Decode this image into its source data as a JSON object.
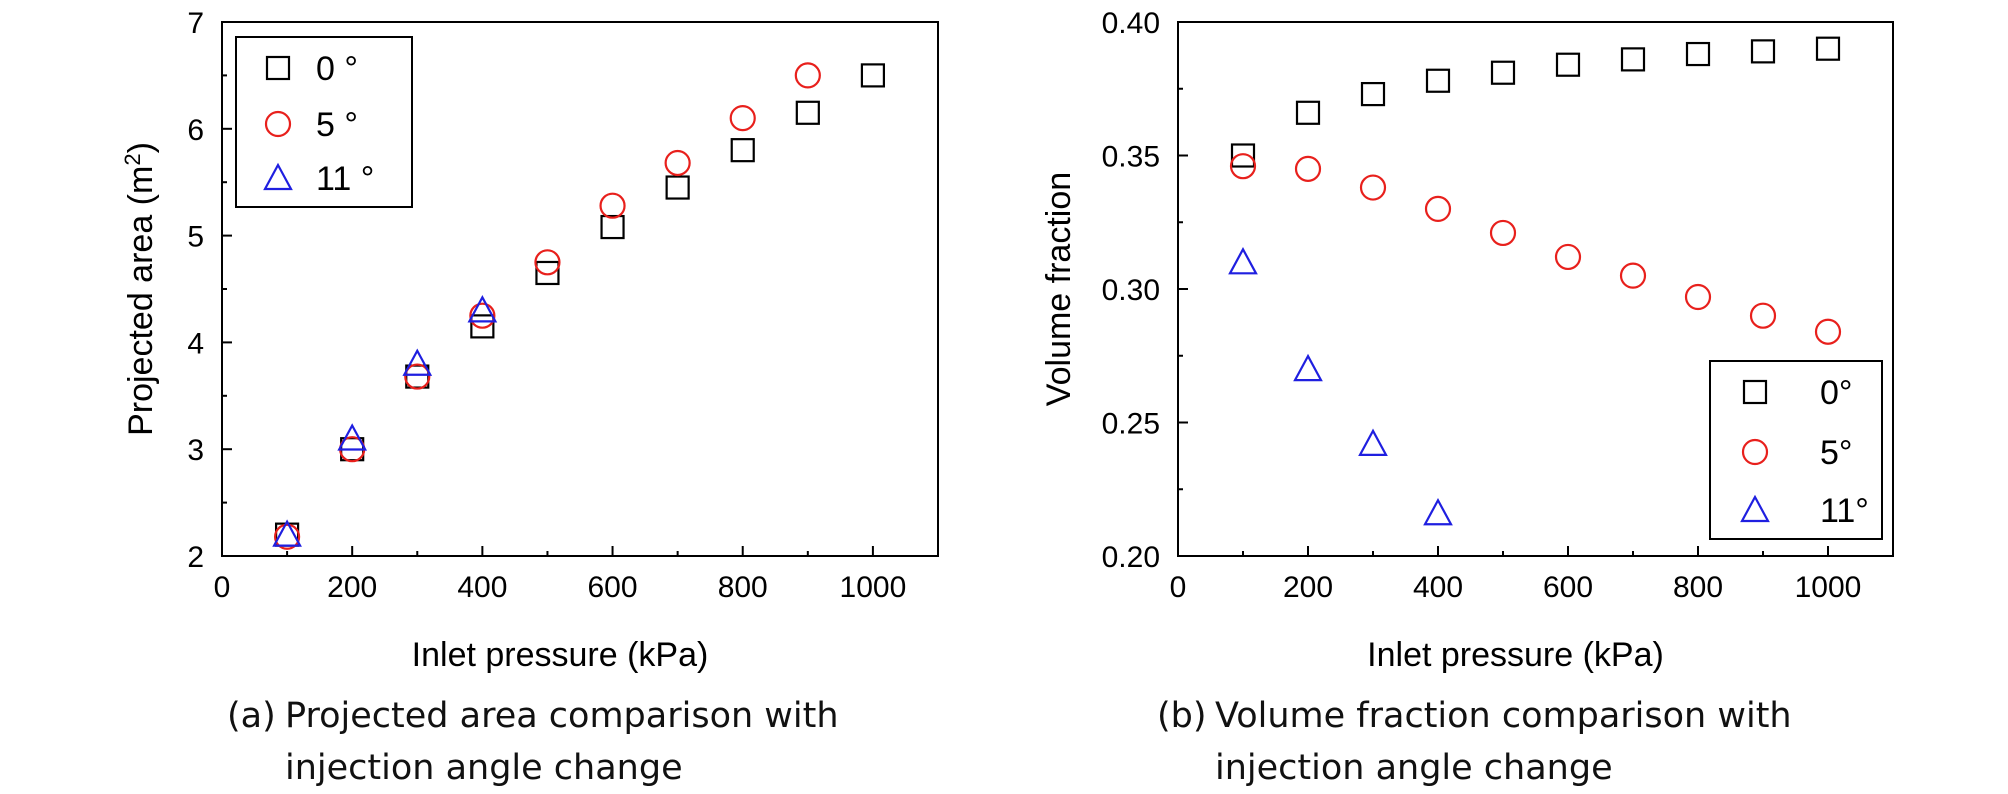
{
  "chart_data": [
    {
      "type": "scatter",
      "panel": "a",
      "xlabel": "Inlet pressure (kPa)",
      "ylabel": "Projected area (m",
      "ylabel_sup": "2",
      "ylabel_end": ")",
      "xlim": [
        0,
        1100
      ],
      "ylim": [
        2,
        7
      ],
      "xticks": [
        "0",
        "200",
        "400",
        "600",
        "800",
        "1000"
      ],
      "yticks": [
        "2",
        "3",
        "4",
        "5",
        "6",
        "7"
      ],
      "legend_position": "top-left",
      "grid": false,
      "series": [
        {
          "name": "0 °",
          "marker": "square",
          "color": "#000000",
          "x": [
            100,
            200,
            300,
            400,
            500,
            600,
            700,
            800,
            900,
            1000
          ],
          "y": [
            2.2,
            3.0,
            3.68,
            4.15,
            4.65,
            5.08,
            5.45,
            5.8,
            6.15,
            6.5
          ]
        },
        {
          "name": "5 °",
          "marker": "circle",
          "color": "#e8201c",
          "x": [
            100,
            200,
            300,
            400,
            500,
            600,
            700,
            800,
            900
          ],
          "y": [
            2.18,
            3.0,
            3.68,
            4.25,
            4.75,
            5.28,
            5.68,
            6.1,
            6.5
          ]
        },
        {
          "name": "11 °",
          "marker": "triangle",
          "color": "#1f1fe0",
          "x": [
            100,
            200,
            300,
            400
          ],
          "y": [
            2.2,
            3.1,
            3.8,
            4.3
          ]
        }
      ],
      "caption_label": "(a)",
      "caption_line1": "Projected area comparison with",
      "caption_line2": "injection angle change"
    },
    {
      "type": "scatter",
      "panel": "b",
      "xlabel": "Inlet pressure (kPa)",
      "ylabel": "Volume fraction",
      "xlim": [
        0,
        1100
      ],
      "ylim": [
        0.2,
        0.4
      ],
      "xticks": [
        "0",
        "200",
        "400",
        "600",
        "800",
        "1000"
      ],
      "yticks": [
        "0.20",
        "0.25",
        "0.30",
        "0.35",
        "0.40"
      ],
      "legend_position": "bottom-right",
      "grid": false,
      "series": [
        {
          "name": "0°",
          "marker": "square",
          "color": "#000000",
          "x": [
            100,
            200,
            300,
            400,
            500,
            600,
            700,
            800,
            900,
            1000
          ],
          "y": [
            0.35,
            0.366,
            0.373,
            0.378,
            0.381,
            0.384,
            0.386,
            0.388,
            0.389,
            0.39
          ]
        },
        {
          "name": "5°",
          "marker": "circle",
          "color": "#e8201c",
          "x": [
            100,
            200,
            300,
            400,
            500,
            600,
            700,
            800,
            900,
            1000
          ],
          "y": [
            0.346,
            0.345,
            0.338,
            0.33,
            0.321,
            0.312,
            0.305,
            0.297,
            0.29,
            0.284
          ]
        },
        {
          "name": "11°",
          "marker": "triangle",
          "color": "#1f1fe0",
          "x": [
            100,
            200,
            300,
            400
          ],
          "y": [
            0.31,
            0.27,
            0.242,
            0.216
          ]
        }
      ],
      "caption_label": "(b)",
      "caption_line1": "Volume fraction comparison with",
      "caption_line2": "injection angle change"
    }
  ]
}
